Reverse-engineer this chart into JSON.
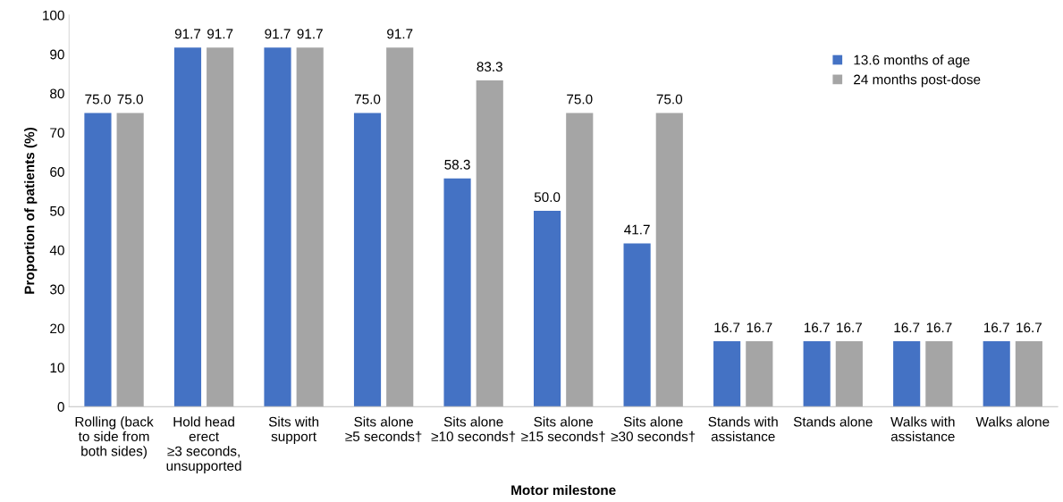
{
  "chart_data": {
    "type": "bar",
    "xlabel": "Motor milestone",
    "ylabel": "Proportion of patients (%)",
    "categories": [
      "Rolling (back\nto side from\nboth sides)",
      "Hold head\nerect\n≥3 seconds,\nunsupported",
      "Sits with\nsupport",
      "Sits alone\n≥5 seconds†",
      "Sits alone\n≥10 seconds†",
      "Sits alone\n≥15 seconds†",
      "Sits alone\n≥30 seconds†",
      "Stands with\nassistance",
      "Stands alone",
      "Walks with\nassistance",
      "Walks alone"
    ],
    "series": [
      {
        "name": "13.6 months of age",
        "color": "#4472c4",
        "values": [
          75.0,
          91.7,
          91.7,
          75.0,
          58.3,
          50.0,
          41.7,
          16.7,
          16.7,
          16.7,
          16.7
        ],
        "value_labels": [
          "75.0",
          "91.7",
          "91.7",
          "75.0",
          "58.3",
          "50.0",
          "41.7",
          "16.7",
          "16.7",
          "16.7",
          "16.7"
        ]
      },
      {
        "name": "24 months post-dose",
        "color": "#a5a5a5",
        "values": [
          75.0,
          91.7,
          91.7,
          91.7,
          83.3,
          75.0,
          75.0,
          16.7,
          16.7,
          16.7,
          16.7
        ],
        "value_labels": [
          "75.0",
          "91.7",
          "91.7",
          "91.7",
          "83.3",
          "75.0",
          "75.0",
          "16.7",
          "16.7",
          "16.7",
          "16.7"
        ]
      }
    ],
    "ylim": [
      0,
      100
    ],
    "yticks": [
      0,
      10,
      20,
      30,
      40,
      50,
      60,
      70,
      80,
      90,
      100
    ],
    "grid": false,
    "legend": "top right"
  }
}
